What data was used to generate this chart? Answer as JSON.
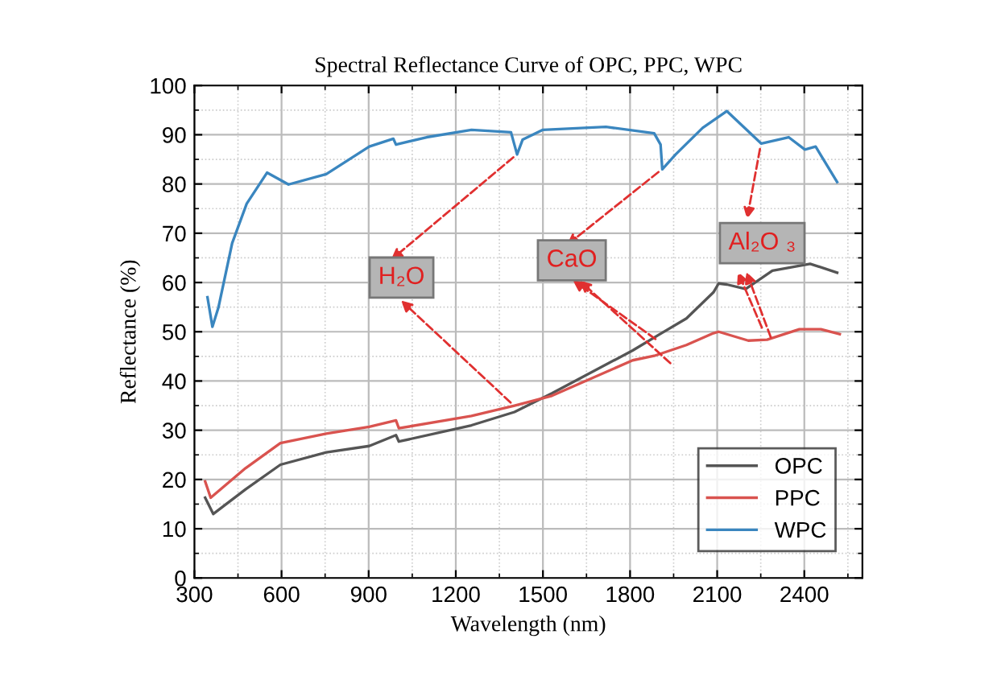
{
  "chart_data": {
    "type": "line",
    "title": "Spectral Reflectance Curve of OPC, PPC, WPC",
    "xlabel": "Wavelength (nm)",
    "ylabel": "Reflectance (%)",
    "xlim": [
      300,
      2600
    ],
    "xticks": [
      300,
      600,
      900,
      1200,
      1500,
      1800,
      2100,
      2400
    ],
    "ylim": [
      0,
      100
    ],
    "yticks": [
      0,
      10,
      20,
      30,
      40,
      50,
      60,
      70,
      80,
      90,
      100
    ],
    "grid": true,
    "legend": "bottom right",
    "annotations": [
      "H₂O",
      "CaO",
      "Al₂O ₃"
    ],
    "series": [
      {
        "name": "OPC",
        "color": "#555555",
        "x": [
          337,
          365,
          476,
          596,
          754,
          902,
          994,
          1004,
          1254,
          1402,
          1531,
          1809,
          1902,
          1994,
          2087,
          2105,
          2133,
          2198,
          2290,
          2420,
          2513
        ],
        "values": [
          16.3,
          13,
          18,
          23,
          25.5,
          26.8,
          29,
          27.7,
          31,
          33.7,
          37.5,
          46.2,
          49.5,
          52.7,
          58,
          59.8,
          59.6,
          58.7,
          62.4,
          63.8,
          62
        ]
      },
      {
        "name": "PPC",
        "color": "#d9534f",
        "x": [
          337,
          356,
          476,
          596,
          754,
          902,
          994,
          1004,
          1254,
          1402,
          1531,
          1809,
          1883,
          1994,
          2087,
          2105,
          2207,
          2272,
          2383,
          2457,
          2522
        ],
        "values": [
          19.6,
          16.3,
          22.3,
          27.4,
          29.3,
          30.7,
          32,
          30.4,
          32.9,
          35,
          37,
          44.2,
          45.1,
          47.3,
          49.7,
          50,
          48.2,
          48.4,
          50.5,
          50.5,
          49.5
        ]
      },
      {
        "name": "WPC",
        "color": "#3a86bf",
        "x": [
          345,
          362,
          383,
          430,
          480,
          550,
          624,
          754,
          902,
          985,
          994,
          1100,
          1254,
          1390,
          1411,
          1430,
          1500,
          1717,
          1883,
          1905,
          1911,
          1957,
          2050,
          2133,
          2252,
          2346,
          2402,
          2439,
          2513
        ],
        "values": [
          57,
          51,
          55,
          68,
          76,
          82.3,
          79.9,
          82,
          87.6,
          89.2,
          88,
          89.5,
          91,
          90.5,
          86,
          89,
          91,
          91.6,
          90.3,
          88,
          83,
          86,
          91.4,
          94.8,
          88.2,
          89.5,
          87,
          87.6,
          80.4
        ]
      }
    ]
  }
}
